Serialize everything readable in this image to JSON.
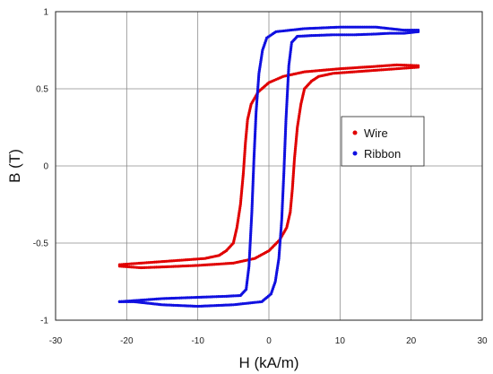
{
  "chart_data": {
    "type": "scatter",
    "title": "",
    "xlabel": "H (kA/m)",
    "ylabel": "B (T)",
    "xlim": [
      -30,
      30
    ],
    "ylim": [
      -1,
      1
    ],
    "xticks": [
      "-30",
      "-20",
      "-10",
      "0",
      "10",
      "20",
      "30"
    ],
    "yticks": [
      "1",
      "0.5",
      "0",
      "-0.5",
      "-1"
    ],
    "grid": true,
    "legend_position": "right",
    "series": [
      {
        "name": "Wire",
        "color": "#e00000",
        "upper_branch": [
          [
            -21,
            -0.64
          ],
          [
            -18,
            -0.63
          ],
          [
            -15,
            -0.62
          ],
          [
            -12,
            -0.61
          ],
          [
            -9,
            -0.6
          ],
          [
            -7,
            -0.58
          ],
          [
            -6,
            -0.55
          ],
          [
            -5,
            -0.5
          ],
          [
            -4.5,
            -0.4
          ],
          [
            -4,
            -0.25
          ],
          [
            -3.6,
            -0.05
          ],
          [
            -3.3,
            0.15
          ],
          [
            -3,
            0.3
          ],
          [
            -2.5,
            0.4
          ],
          [
            -1.5,
            0.48
          ],
          [
            0,
            0.54
          ],
          [
            2,
            0.58
          ],
          [
            5,
            0.61
          ],
          [
            10,
            0.63
          ],
          [
            15,
            0.645
          ],
          [
            18,
            0.655
          ],
          [
            21,
            0.65
          ]
        ],
        "lower_branch": [
          [
            21,
            0.64
          ],
          [
            18,
            0.63
          ],
          [
            15,
            0.62
          ],
          [
            12,
            0.61
          ],
          [
            9,
            0.6
          ],
          [
            7,
            0.58
          ],
          [
            6,
            0.55
          ],
          [
            5,
            0.5
          ],
          [
            4.5,
            0.4
          ],
          [
            4,
            0.25
          ],
          [
            3.6,
            0.05
          ],
          [
            3.3,
            -0.15
          ],
          [
            3,
            -0.3
          ],
          [
            2.5,
            -0.4
          ],
          [
            1.5,
            -0.48
          ],
          [
            0,
            -0.55
          ],
          [
            -2,
            -0.6
          ],
          [
            -5,
            -0.63
          ],
          [
            -10,
            -0.645
          ],
          [
            -15,
            -0.655
          ],
          [
            -18,
            -0.66
          ],
          [
            -21,
            -0.65
          ]
        ]
      },
      {
        "name": "Ribbon",
        "color": "#1010e0",
        "upper_branch": [
          [
            -21,
            -0.88
          ],
          [
            -18,
            -0.87
          ],
          [
            -15,
            -0.86
          ],
          [
            -12,
            -0.855
          ],
          [
            -9,
            -0.85
          ],
          [
            -6,
            -0.845
          ],
          [
            -4,
            -0.84
          ],
          [
            -3.2,
            -0.8
          ],
          [
            -2.8,
            -0.65
          ],
          [
            -2.4,
            -0.3
          ],
          [
            -2.1,
            0.05
          ],
          [
            -1.8,
            0.35
          ],
          [
            -1.4,
            0.6
          ],
          [
            -0.9,
            0.75
          ],
          [
            -0.3,
            0.83
          ],
          [
            1,
            0.87
          ],
          [
            5,
            0.89
          ],
          [
            10,
            0.9
          ],
          [
            15,
            0.9
          ],
          [
            17,
            0.89
          ],
          [
            19,
            0.88
          ],
          [
            21,
            0.88
          ]
        ],
        "lower_branch": [
          [
            21,
            0.87
          ],
          [
            19,
            0.86
          ],
          [
            17,
            0.86
          ],
          [
            15,
            0.855
          ],
          [
            12,
            0.85
          ],
          [
            9,
            0.85
          ],
          [
            6,
            0.845
          ],
          [
            4,
            0.84
          ],
          [
            3.2,
            0.8
          ],
          [
            2.8,
            0.65
          ],
          [
            2.4,
            0.3
          ],
          [
            2.1,
            -0.05
          ],
          [
            1.8,
            -0.35
          ],
          [
            1.4,
            -0.6
          ],
          [
            0.9,
            -0.75
          ],
          [
            0.3,
            -0.83
          ],
          [
            -1,
            -0.88
          ],
          [
            -5,
            -0.9
          ],
          [
            -10,
            -0.91
          ],
          [
            -15,
            -0.9
          ],
          [
            -17,
            -0.89
          ],
          [
            -19,
            -0.88
          ],
          [
            -21,
            -0.88
          ]
        ]
      }
    ]
  }
}
